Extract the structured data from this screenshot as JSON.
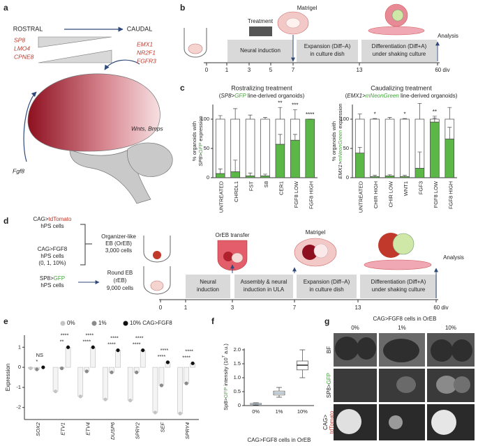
{
  "figure": {
    "a": {
      "label": "a",
      "rostral": "ROSTRAL",
      "caudal": "CAUDAL",
      "rostral_genes": [
        "SP8",
        "LMO4",
        "CPNE8"
      ],
      "caudal_genes": [
        "EMX1",
        "NR2F1",
        "FGFR3"
      ],
      "signals": "Wnts, Bmps",
      "fgf8": "Fgf8"
    },
    "b": {
      "label": "b",
      "matrigel": "Matrigel",
      "treatment": "Treatment",
      "neural_induction": "Neural induction",
      "expansion": [
        "Expansion (Diff–A)",
        "in culture dish"
      ],
      "differentiation": [
        "Differentiation (Diff+A)",
        "under shaking culture"
      ],
      "analysis": "Analysis",
      "timeline": [
        "0",
        "1",
        "3",
        "5",
        "7",
        "13",
        "60 div"
      ]
    },
    "c": {
      "label": "c"
    },
    "d": {
      "label": "d",
      "tdtomato_cells": [
        "CAG>",
        "tdTomato",
        "hPS cells"
      ],
      "fgf8_cells": [
        "CAG>FGF8",
        "hPS cells",
        "(0, 1, 10%)"
      ],
      "oreb": [
        "Organizer-like",
        "EB (OrEB)",
        "3,000 cells"
      ],
      "gfp_cells": [
        "SP8>",
        "GFP",
        "hPS cells"
      ],
      "reb": [
        "Round EB",
        "(rEB)",
        "9,000 cells"
      ],
      "oreb_transfer": "OrEB transfer",
      "matrigel": "Matrigel",
      "neural_induction": [
        "Neural",
        "induction"
      ],
      "assembly": [
        "Assembly & neural",
        "induction in ULA"
      ],
      "expansion": [
        "Expansion (Diff–A)",
        "in culture dish"
      ],
      "differentiation": [
        "Differentiation (Diff+A)",
        "under shaking culture"
      ],
      "analysis": "Analysis",
      "timeline": [
        "0",
        "1",
        "3",
        "7",
        "13",
        "60 div"
      ]
    },
    "e": {
      "label": "e"
    },
    "f": {
      "label": "f"
    },
    "g": {
      "label": "g",
      "header": "CAG>FGF8 cells in OrEB",
      "columns": [
        "0%",
        "1%",
        "10%"
      ],
      "rows": [
        [
          "BF"
        ],
        [
          "SP8>",
          "GFP"
        ],
        [
          "CAG>",
          "tdTomato"
        ]
      ]
    }
  },
  "chart_data": [
    {
      "type": "stacked-bar",
      "title": "Rostralizing treatment",
      "subtitle": [
        "(",
        "SP8>",
        "GFP",
        " line-derived organoids)"
      ],
      "ylabel": [
        "% organoids with",
        "SP8>",
        "GFP",
        " expression"
      ],
      "categories": [
        "UNTREATED",
        "CHRDL1",
        "FST",
        "S8",
        "CER1",
        "FGF8 LOW",
        "FGF8 HIGH"
      ],
      "series": [
        {
          "color": "#5cb846",
          "values": [
            7,
            10,
            3,
            3,
            57,
            64,
            100
          ],
          "errors": [
            8,
            20,
            5,
            3,
            17,
            10,
            0
          ]
        },
        {
          "color": "#ffffff",
          "values": [
            93,
            90,
            97,
            97,
            43,
            36,
            0
          ],
          "errors": [
            6,
            18,
            7,
            3,
            20,
            16,
            0
          ]
        }
      ],
      "annotations": [
        null,
        null,
        null,
        null,
        "**",
        "***",
        "****"
      ],
      "ylim": [
        0,
        125
      ],
      "yticks": [
        0,
        50,
        100
      ]
    },
    {
      "type": "stacked-bar",
      "title": "Caudalizing treatment",
      "subtitle": [
        "(",
        "EMX1>",
        "mNeonGreen",
        " line-derived organoids)"
      ],
      "ylabel": [
        "% organoids with",
        "EMX1>",
        "mNeonGreen",
        " expression"
      ],
      "categories": [
        "UNTREATED",
        "CHIR HIGH",
        "CHIR LOW",
        "WNT1",
        "FGF3",
        "FGF8 LOW",
        "FGF8 HIGH"
      ],
      "series": [
        {
          "color": "#5cb846",
          "values": [
            42,
            2,
            3,
            2,
            16,
            95,
            66
          ],
          "errors": [
            10,
            2,
            2,
            2,
            28,
            7,
            20
          ]
        },
        {
          "color": "#ffffff",
          "values": [
            58,
            98,
            97,
            98,
            84,
            5,
            34
          ],
          "errors": [
            9,
            1,
            3,
            1,
            27,
            5,
            20
          ]
        }
      ],
      "annotations": [
        null,
        "*",
        null,
        "*",
        null,
        "**",
        null
      ],
      "ylim": [
        0,
        125
      ],
      "yticks": [
        0,
        50,
        100
      ]
    },
    {
      "type": "dot-bar",
      "ylabel": "Expression",
      "categories": [
        "SOX2",
        "ETV1",
        "ETV4",
        "DUSP6",
        "SPRY2",
        "SEF",
        "SPRY4"
      ],
      "series": [
        {
          "name": "0%",
          "color": "#c4c4c4",
          "values": [
            -0.05,
            -1.2,
            -1.45,
            -1.6,
            -1.65,
            -2.25,
            -2.3
          ]
        },
        {
          "name": "1%",
          "color": "#8a8a8a",
          "values": [
            -0.1,
            -0.05,
            -0.2,
            -0.25,
            -0.25,
            -0.9,
            -0.8
          ]
        },
        {
          "name": "10% CAG>FGF8",
          "color": "#111111",
          "values": [
            0,
            1,
            1,
            0.85,
            0.85,
            0.25,
            0.2
          ]
        }
      ],
      "annotations": [
        [
          "NS",
          "*"
        ],
        [
          "****",
          "**"
        ],
        [
          "****",
          "****"
        ],
        [
          "****",
          "****"
        ],
        [
          "****",
          "****"
        ],
        [
          "****",
          "****"
        ],
        [
          "****",
          "****"
        ]
      ],
      "ylim": [
        -2.6,
        1.6
      ],
      "yticks": [
        -2,
        -1,
        0,
        1
      ]
    },
    {
      "type": "box",
      "ylabel": [
        "Sp8>",
        "GFP",
        " intensity (10",
        "7",
        " a.u.)"
      ],
      "xlabel": "CAG>FGF8 cells in OrEB",
      "categories": [
        "0%",
        "1%",
        "10%"
      ],
      "colors": [
        "#b8c0c8",
        "#8ea4b8",
        "#222222"
      ],
      "boxes": [
        {
          "min": 0.02,
          "q1": 0.04,
          "median": 0.06,
          "q3": 0.08,
          "max": 0.1
        },
        {
          "min": 0.3,
          "q1": 0.38,
          "median": 0.45,
          "q3": 0.52,
          "max": 0.65
        },
        {
          "min": 1.0,
          "q1": 1.28,
          "median": 1.45,
          "q3": 1.6,
          "max": 2.0
        }
      ],
      "ylim": [
        0,
        2.05
      ],
      "yticks": [
        0,
        0.5,
        {
          "value": 1,
          "label": "1.0"
        },
        1.5,
        {
          "value": 2,
          "label": "2.0"
        }
      ]
    }
  ]
}
